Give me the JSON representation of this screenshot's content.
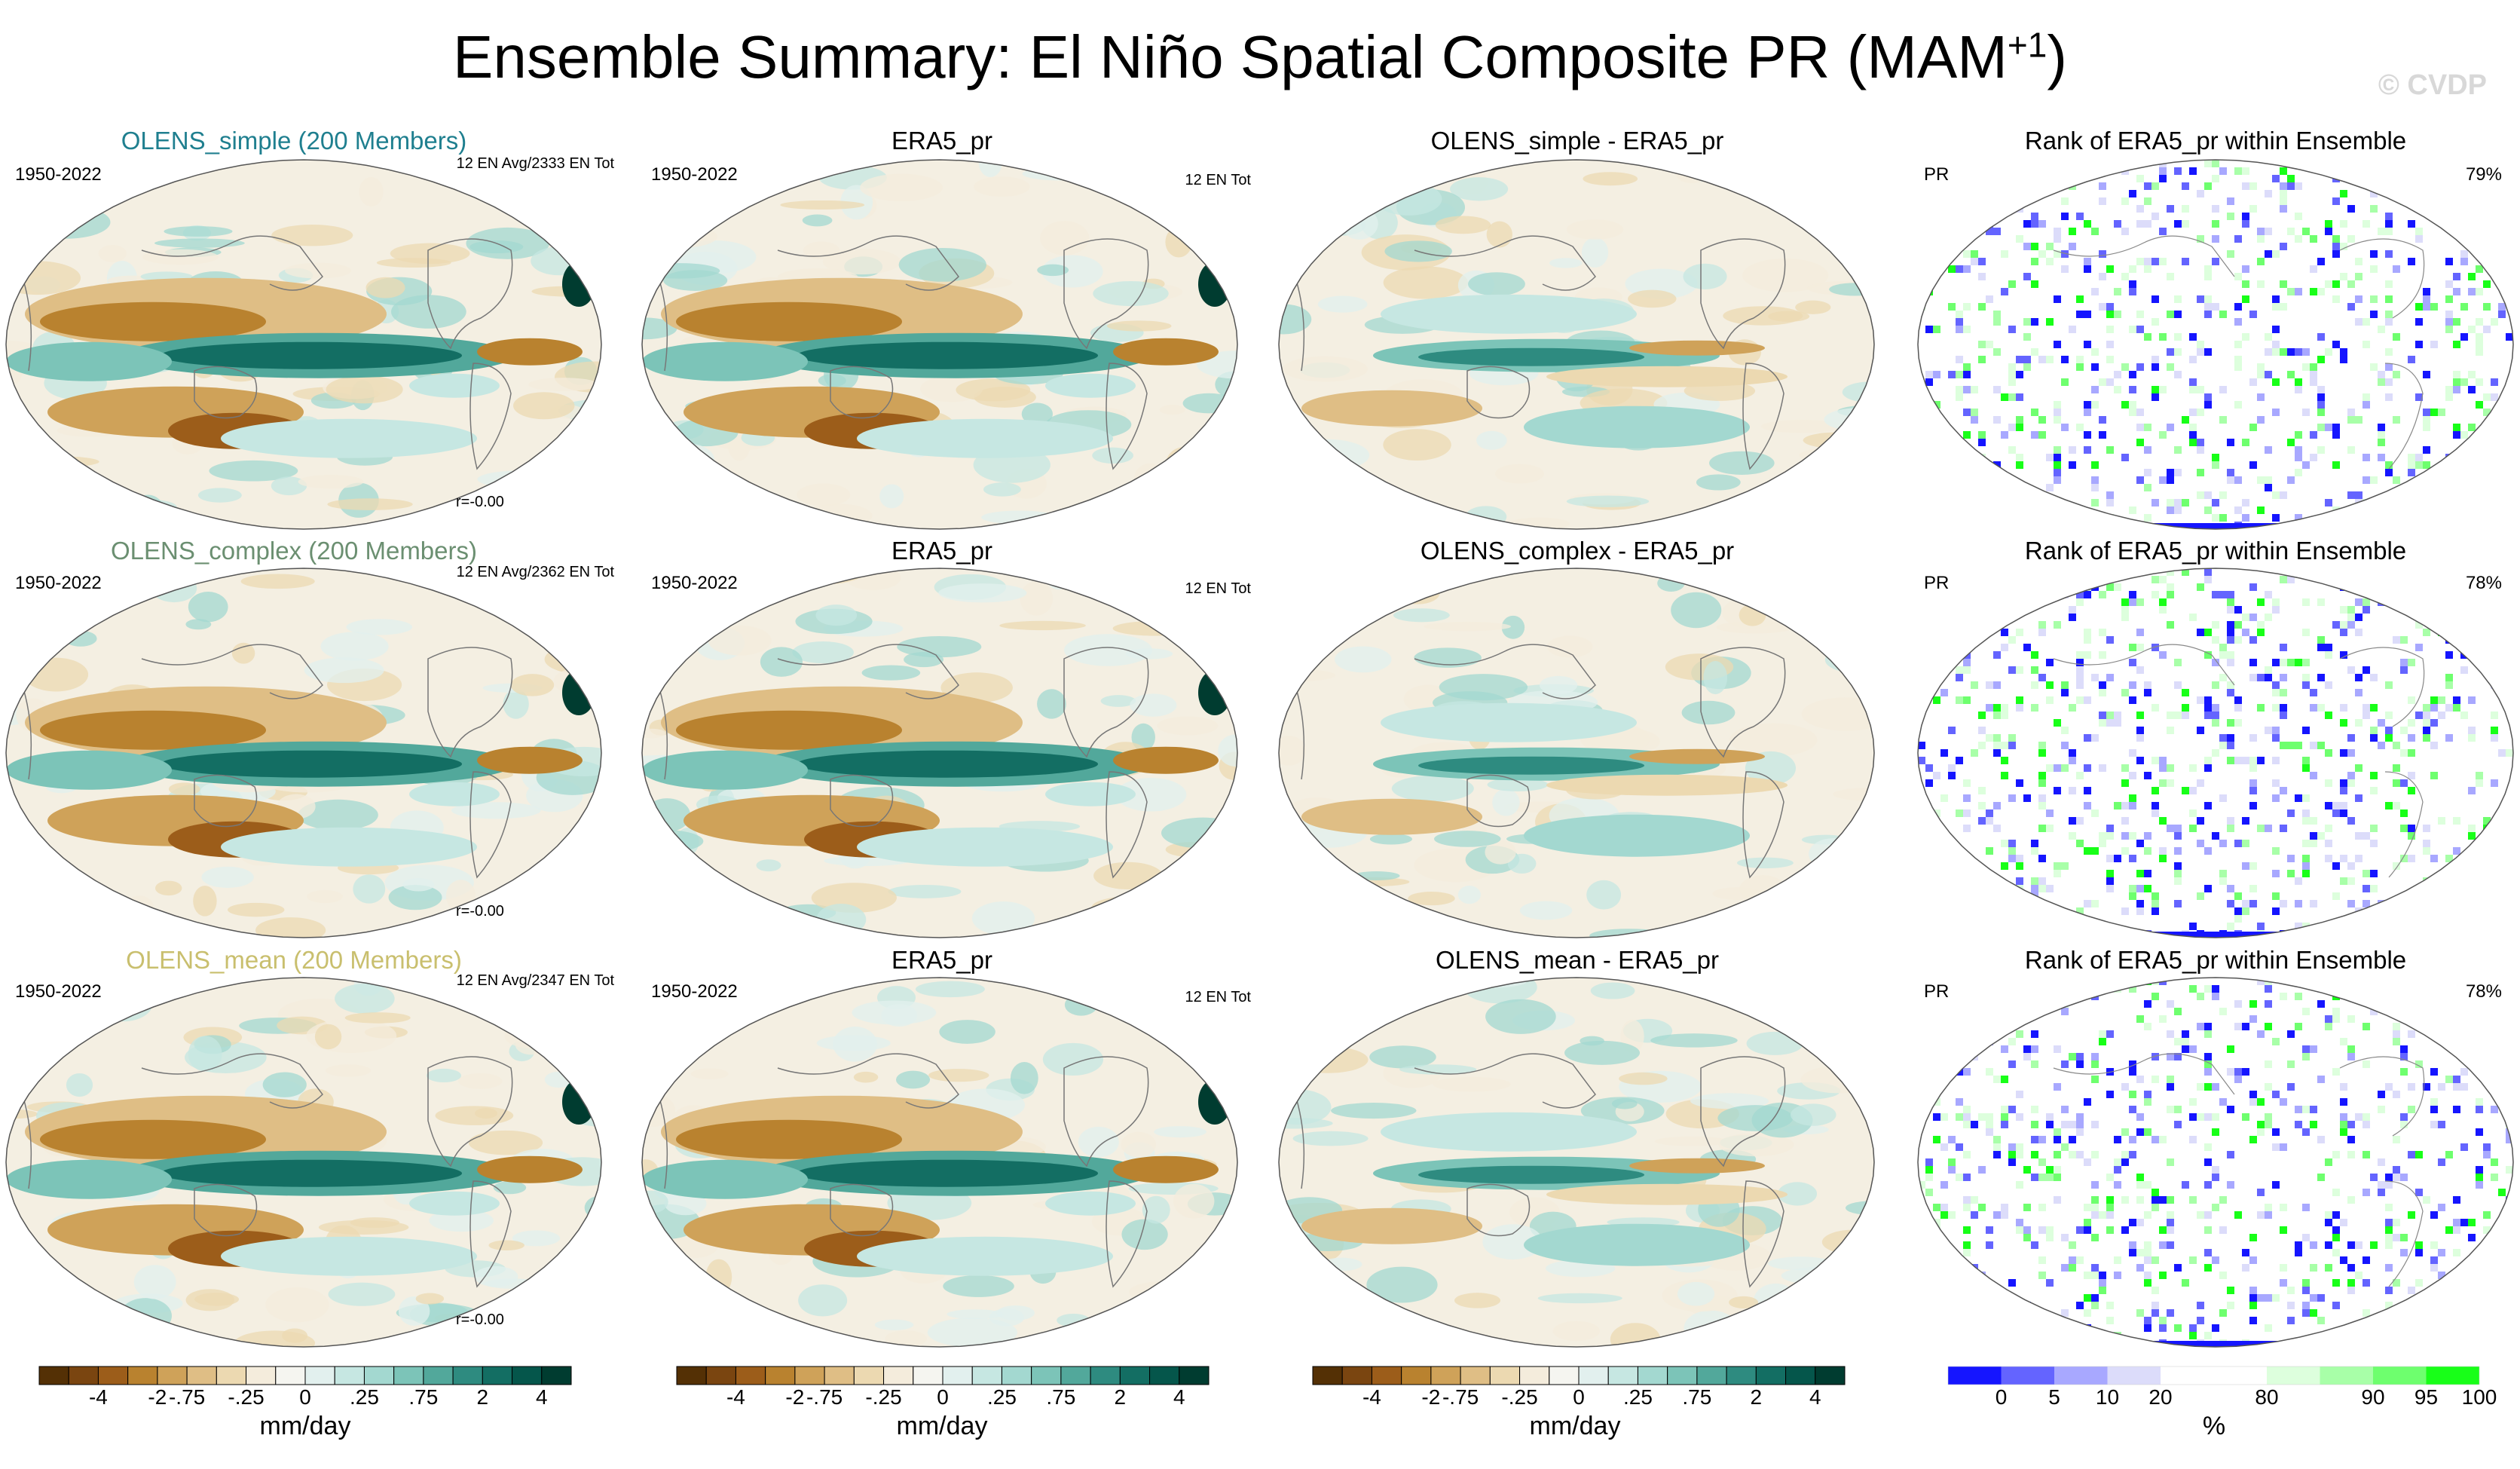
{
  "header": {
    "title": "Ensemble Summary: El Niño Spatial Composite PR (MAM",
    "title_sup": "+1",
    "title_end": ")",
    "watermark": "© CVDP"
  },
  "colors": {
    "olens_simple": "#1f7f8f",
    "olens_complex": "#6b8f71",
    "olens_mean": "#c9bf6e",
    "diverging_scale": [
      "#543005",
      "#7a4510",
      "#9c5d1a",
      "#b9822f",
      "#cfa259",
      "#dfbe85",
      "#ecd9b1",
      "#f4ecdc",
      "#f5f5f0",
      "#e2f0ee",
      "#c6e7e2",
      "#a3d8d0",
      "#7cc4b8",
      "#52a89b",
      "#2e8b80",
      "#136e63",
      "#05564b",
      "#003c30"
    ],
    "rank_scale": [
      "#1515ff",
      "#6464ff",
      "#a8a8ff",
      "#dcdcfa",
      "#ffffff",
      "#ffffff",
      "#ddffdd",
      "#a8ffa8",
      "#6eff6e",
      "#18ff18"
    ]
  },
  "rows": [
    {
      "model_label": "OLENS_simple (200 Members)",
      "model_color": "#1f7f8f",
      "period": "1950-2022",
      "model_count": "12 EN Avg/2333 EN Tot",
      "correlation": "r=-0.00",
      "obs_title": "ERA5_pr",
      "obs_period": "1950-2022",
      "obs_count": "12 EN Tot",
      "diff_title": "OLENS_simple - ERA5_pr",
      "rank_title": "Rank of ERA5_pr within Ensemble",
      "rank_var": "PR",
      "rank_pct": "79%"
    },
    {
      "model_label": "OLENS_complex (200 Members)",
      "model_color": "#6b8f71",
      "period": "1950-2022",
      "model_count": "12 EN Avg/2362 EN Tot",
      "correlation": "r=-0.00",
      "obs_title": "ERA5_pr",
      "obs_period": "1950-2022",
      "obs_count": "12 EN Tot",
      "diff_title": "OLENS_complex - ERA5_pr",
      "rank_title": "Rank of ERA5_pr within Ensemble",
      "rank_var": "PR",
      "rank_pct": "78%"
    },
    {
      "model_label": "OLENS_mean (200 Members)",
      "model_color": "#c9bf6e",
      "period": "1950-2022",
      "model_count": "12 EN Avg/2347 EN Tot",
      "correlation": "r=-0.00",
      "obs_title": "ERA5_pr",
      "obs_period": "1950-2022",
      "obs_count": "12 EN Tot",
      "diff_title": "OLENS_mean - ERA5_pr",
      "rank_title": "Rank of ERA5_pr within Ensemble",
      "rank_var": "PR",
      "rank_pct": "78%"
    }
  ],
  "colorbars": {
    "precip": {
      "ticks": [
        "-4",
        "-2",
        "-.75",
        "-.25",
        "0",
        ".25",
        ".75",
        "2",
        "4"
      ],
      "unit": "mm/day"
    },
    "rank": {
      "ticks": [
        "0",
        "5",
        "10",
        "20",
        "80",
        "90",
        "95",
        "100"
      ],
      "unit": "%"
    }
  },
  "chart_data": {
    "type": "heatmap",
    "title": "Ensemble Summary: El Niño Spatial Composite PR (MAM+1)",
    "projection": "Robinson (Pacific-centered global map)",
    "layout": "3 rows (models) x 4 columns (model composite, observed ERA5_pr, difference, rank)",
    "variable": "precipitation anomaly",
    "units": "mm/day",
    "contour_levels": [
      -4,
      -3,
      -2,
      -1,
      -0.75,
      -0.5,
      -0.25,
      -0.1,
      0,
      0.1,
      0.25,
      0.5,
      0.75,
      1,
      2,
      3,
      4
    ],
    "rank_levels_percent": [
      0,
      5,
      10,
      20,
      80,
      90,
      95,
      100
    ],
    "panels": [
      {
        "row": 1,
        "column": "model",
        "name": "OLENS_simple (200 Members)",
        "period": "1950-2022",
        "events": "12 EN Avg/2333 EN Tot",
        "pattern_correlation": -0.0
      },
      {
        "row": 1,
        "column": "observed",
        "name": "ERA5_pr",
        "period": "1950-2022",
        "events": "12 EN Tot"
      },
      {
        "row": 1,
        "column": "difference",
        "name": "OLENS_simple - ERA5_pr"
      },
      {
        "row": 1,
        "column": "rank",
        "name": "Rank of ERA5_pr within Ensemble",
        "within_10_90_percent": 79
      },
      {
        "row": 2,
        "column": "model",
        "name": "OLENS_complex (200 Members)",
        "period": "1950-2022",
        "events": "12 EN Avg/2362 EN Tot",
        "pattern_correlation": -0.0
      },
      {
        "row": 2,
        "column": "observed",
        "name": "ERA5_pr",
        "period": "1950-2022",
        "events": "12 EN Tot"
      },
      {
        "row": 2,
        "column": "difference",
        "name": "OLENS_complex - ERA5_pr"
      },
      {
        "row": 2,
        "column": "rank",
        "name": "Rank of ERA5_pr within Ensemble",
        "within_10_90_percent": 78
      },
      {
        "row": 3,
        "column": "model",
        "name": "OLENS_mean (200 Members)",
        "period": "1950-2022",
        "events": "12 EN Avg/2347 EN Tot",
        "pattern_correlation": -0.0
      },
      {
        "row": 3,
        "column": "observed",
        "name": "ERA5_pr",
        "period": "1950-2022",
        "events": "12 EN Tot"
      },
      {
        "row": 3,
        "column": "difference",
        "name": "OLENS_mean - ERA5_pr"
      },
      {
        "row": 3,
        "column": "rank",
        "name": "Rank of ERA5_pr within Ensemble",
        "within_10_90_percent": 78
      }
    ],
    "features": {
      "equatorial_pacific": "positive anomaly band (teal, up to ~4 mm/day)",
      "maritime_continent_and_subtropics": "negative anomalies (brown, down to ~-4 mm/day)",
      "atlantic_itcz": "negative anomaly near equatorial Atlantic"
    }
  }
}
